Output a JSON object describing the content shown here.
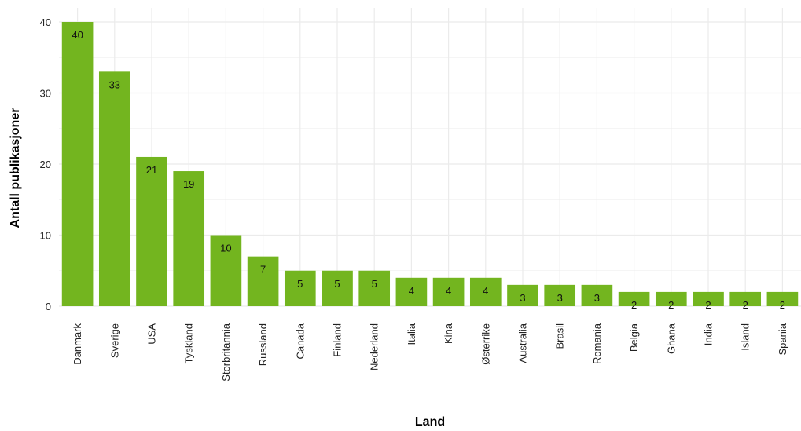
{
  "chart_data": {
    "type": "bar",
    "title": "",
    "xlabel": "Land",
    "ylabel": "Antall publikasjoner",
    "categories": [
      "Danmark",
      "Sverige",
      "USA",
      "Tyskland",
      "Storbritannia",
      "Russland",
      "Canada",
      "Finland",
      "Nederland",
      "Italia",
      "Kina",
      "Østerrike",
      "Australia",
      "Brasil",
      "Romania",
      "Belgia",
      "Ghana",
      "India",
      "Island",
      "Spania"
    ],
    "values": [
      40,
      33,
      21,
      19,
      10,
      7,
      5,
      5,
      5,
      4,
      4,
      4,
      3,
      3,
      3,
      2,
      2,
      2,
      2,
      2
    ],
    "ylim": [
      0,
      40
    ],
    "yticks": [
      0,
      10,
      20,
      30,
      40
    ],
    "grid": true,
    "legend": "none",
    "bar_color": "#73b51f",
    "grid_color": "#ebebeb"
  }
}
